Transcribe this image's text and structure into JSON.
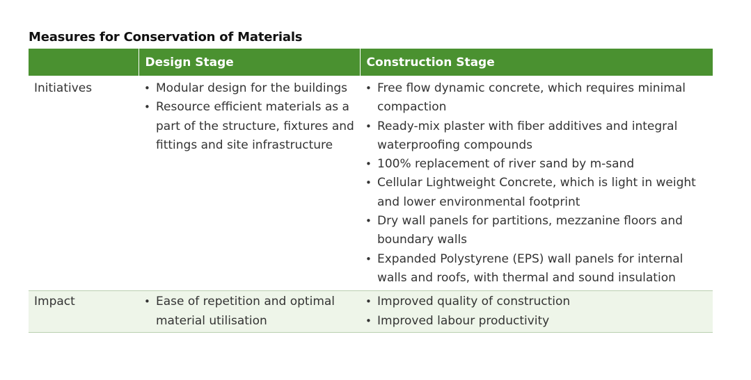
{
  "title": "Measures for Conservation of Materials",
  "colors": {
    "header_bg": "#4a9130",
    "impact_bg": "#eef5e9",
    "rule": "#b9cfb0"
  },
  "columns": [
    "",
    "Design Stage",
    "Construction Stage"
  ],
  "rows": [
    {
      "label": "Initiatives",
      "design": [
        "Modular design for the buildings",
        "Resource efficient materials as a part of the structure, fixtures and fittings and site infrastructure"
      ],
      "construction": [
        "Free flow dynamic concrete, which requires minimal compaction",
        "Ready-mix plaster with fiber additives and integral waterproofing compounds",
        "100% replacement of river sand by m-sand",
        "Cellular Lightweight Concrete, which is light in weight and lower environmental footprint",
        "Dry wall panels for partitions, mezzanine floors and boundary walls",
        "Expanded Polystyrene (EPS) wall panels for internal walls and roofs, with thermal and sound insulation"
      ]
    },
    {
      "label": "Impact",
      "design": [
        "Ease of repetition and optimal material utilisation"
      ],
      "construction": [
        "Improved quality of construction",
        "Improved labour productivity"
      ]
    }
  ]
}
